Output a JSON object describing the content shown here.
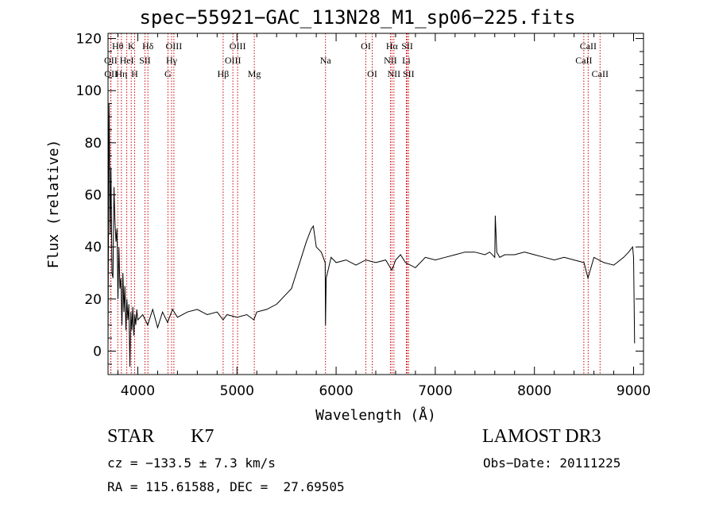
{
  "header": {
    "title": "spec−55921−GAC_113N28_M1_sp06−225.fits"
  },
  "info": {
    "object_class": "STAR",
    "subclass": "K7",
    "survey": "LAMOST DR3",
    "cz_line": "cz = −133.5 ± 7.3 km/s",
    "obs_date_line": "Obs−Date: 20111225",
    "coords_line": "RA = 115.61588, DEC =  27.69505"
  },
  "chart_data": {
    "type": "line",
    "title": "spec−55921−GAC_113N28_M1_sp06−225.fits",
    "xlabel": "Wavelength (Å)",
    "ylabel": "Flux (relative)",
    "xlim": [
      3700,
      9100
    ],
    "ylim": [
      -9,
      122
    ],
    "xticks": [
      4000,
      5000,
      6000,
      7000,
      8000,
      9000
    ],
    "yticks": [
      0,
      20,
      40,
      60,
      80,
      100,
      120
    ],
    "grid": false,
    "line_color": "#000000",
    "marker_color": "#cc0000",
    "series": [
      {
        "x": [
          3700,
          3705,
          3710,
          3715,
          3720,
          3730,
          3740,
          3750,
          3760,
          3770,
          3780,
          3790,
          3800,
          3810,
          3820,
          3830,
          3840,
          3850,
          3860,
          3870,
          3880,
          3890,
          3900,
          3910,
          3920,
          3930,
          3940,
          3950,
          3960,
          3970,
          3980,
          3990,
          4000,
          4050,
          4100,
          4150,
          4200,
          4250,
          4300,
          4350,
          4400,
          4500,
          4600,
          4700,
          4800,
          4860,
          4900,
          5000,
          5100,
          5170,
          5200,
          5300,
          5400,
          5500,
          5550,
          5600,
          5650,
          5700,
          5750,
          5770,
          5800,
          5850,
          5890,
          5893,
          5900,
          5950,
          6000,
          6100,
          6200,
          6300,
          6400,
          6500,
          6563,
          6600,
          6650,
          6700,
          6800,
          6900,
          7000,
          7100,
          7200,
          7300,
          7400,
          7500,
          7550,
          7600,
          7605,
          7620,
          7650,
          7700,
          7800,
          7900,
          8000,
          8100,
          8200,
          8300,
          8400,
          8500,
          8540,
          8600,
          8700,
          8800,
          8900,
          8950,
          8990,
          9000,
          9010
        ],
        "values": [
          2,
          50,
          95,
          78,
          45,
          70,
          30,
          28,
          63,
          50,
          42,
          47,
          20,
          40,
          24,
          28,
          10,
          30,
          15,
          25,
          8,
          20,
          12,
          18,
          -6,
          15,
          8,
          17,
          6,
          14,
          10,
          16,
          12,
          14,
          10,
          16,
          9,
          15,
          11,
          16,
          13,
          15,
          16,
          14,
          15,
          12,
          14,
          13,
          14,
          12,
          15,
          16,
          18,
          22,
          24,
          30,
          36,
          42,
          47,
          48,
          40,
          38,
          34,
          10,
          28,
          36,
          34,
          35,
          33,
          35,
          34,
          35,
          31,
          35,
          37,
          34,
          32,
          36,
          35,
          36,
          37,
          38,
          38,
          37,
          38,
          36,
          52,
          38,
          36,
          37,
          37,
          38,
          37,
          36,
          35,
          36,
          35,
          34,
          28,
          36,
          34,
          33,
          36,
          38,
          40,
          36,
          3
        ]
      }
    ],
    "line_markers": [
      {
        "label": "Hθ",
        "x": 3798,
        "row": 0
      },
      {
        "label": "K",
        "x": 3934,
        "row": 0
      },
      {
        "label": "Hδ",
        "x": 4102,
        "row": 0
      },
      {
        "label": "OIII",
        "x": 4364,
        "row": 0
      },
      {
        "label": "OIII",
        "x": 5007,
        "row": 0
      },
      {
        "label": "OI",
        "x": 6300,
        "row": 0
      },
      {
        "label": "Hα",
        "x": 6563,
        "row": 0
      },
      {
        "label": "SII",
        "x": 6717,
        "row": 0
      },
      {
        "label": "CaII",
        "x": 8542,
        "row": 0
      },
      {
        "label": "OII",
        "x": 3727,
        "row": 1
      },
      {
        "label": "HeI",
        "x": 3889,
        "row": 1
      },
      {
        "label": "SII",
        "x": 4072,
        "row": 1
      },
      {
        "label": "Hγ",
        "x": 4341,
        "row": 1
      },
      {
        "label": "OIII",
        "x": 4959,
        "row": 1
      },
      {
        "label": "Na",
        "x": 5893,
        "row": 1
      },
      {
        "label": "NII",
        "x": 6548,
        "row": 1
      },
      {
        "label": "Li",
        "x": 6708,
        "row": 1
      },
      {
        "label": "CaII",
        "x": 8498,
        "row": 1
      },
      {
        "label": "OII",
        "x": 3729,
        "row": 2
      },
      {
        "label": "Hη",
        "x": 3835,
        "row": 2
      },
      {
        "label": "H",
        "x": 3968,
        "row": 2
      },
      {
        "label": "G",
        "x": 4304,
        "row": 2
      },
      {
        "label": "Hβ",
        "x": 4861,
        "row": 2
      },
      {
        "label": "Mg",
        "x": 5175,
        "row": 2
      },
      {
        "label": "OI",
        "x": 6364,
        "row": 2
      },
      {
        "label": "NII",
        "x": 6583,
        "row": 2
      },
      {
        "label": "SII",
        "x": 6731,
        "row": 2
      },
      {
        "label": "CaII",
        "x": 8662,
        "row": 2
      }
    ]
  }
}
